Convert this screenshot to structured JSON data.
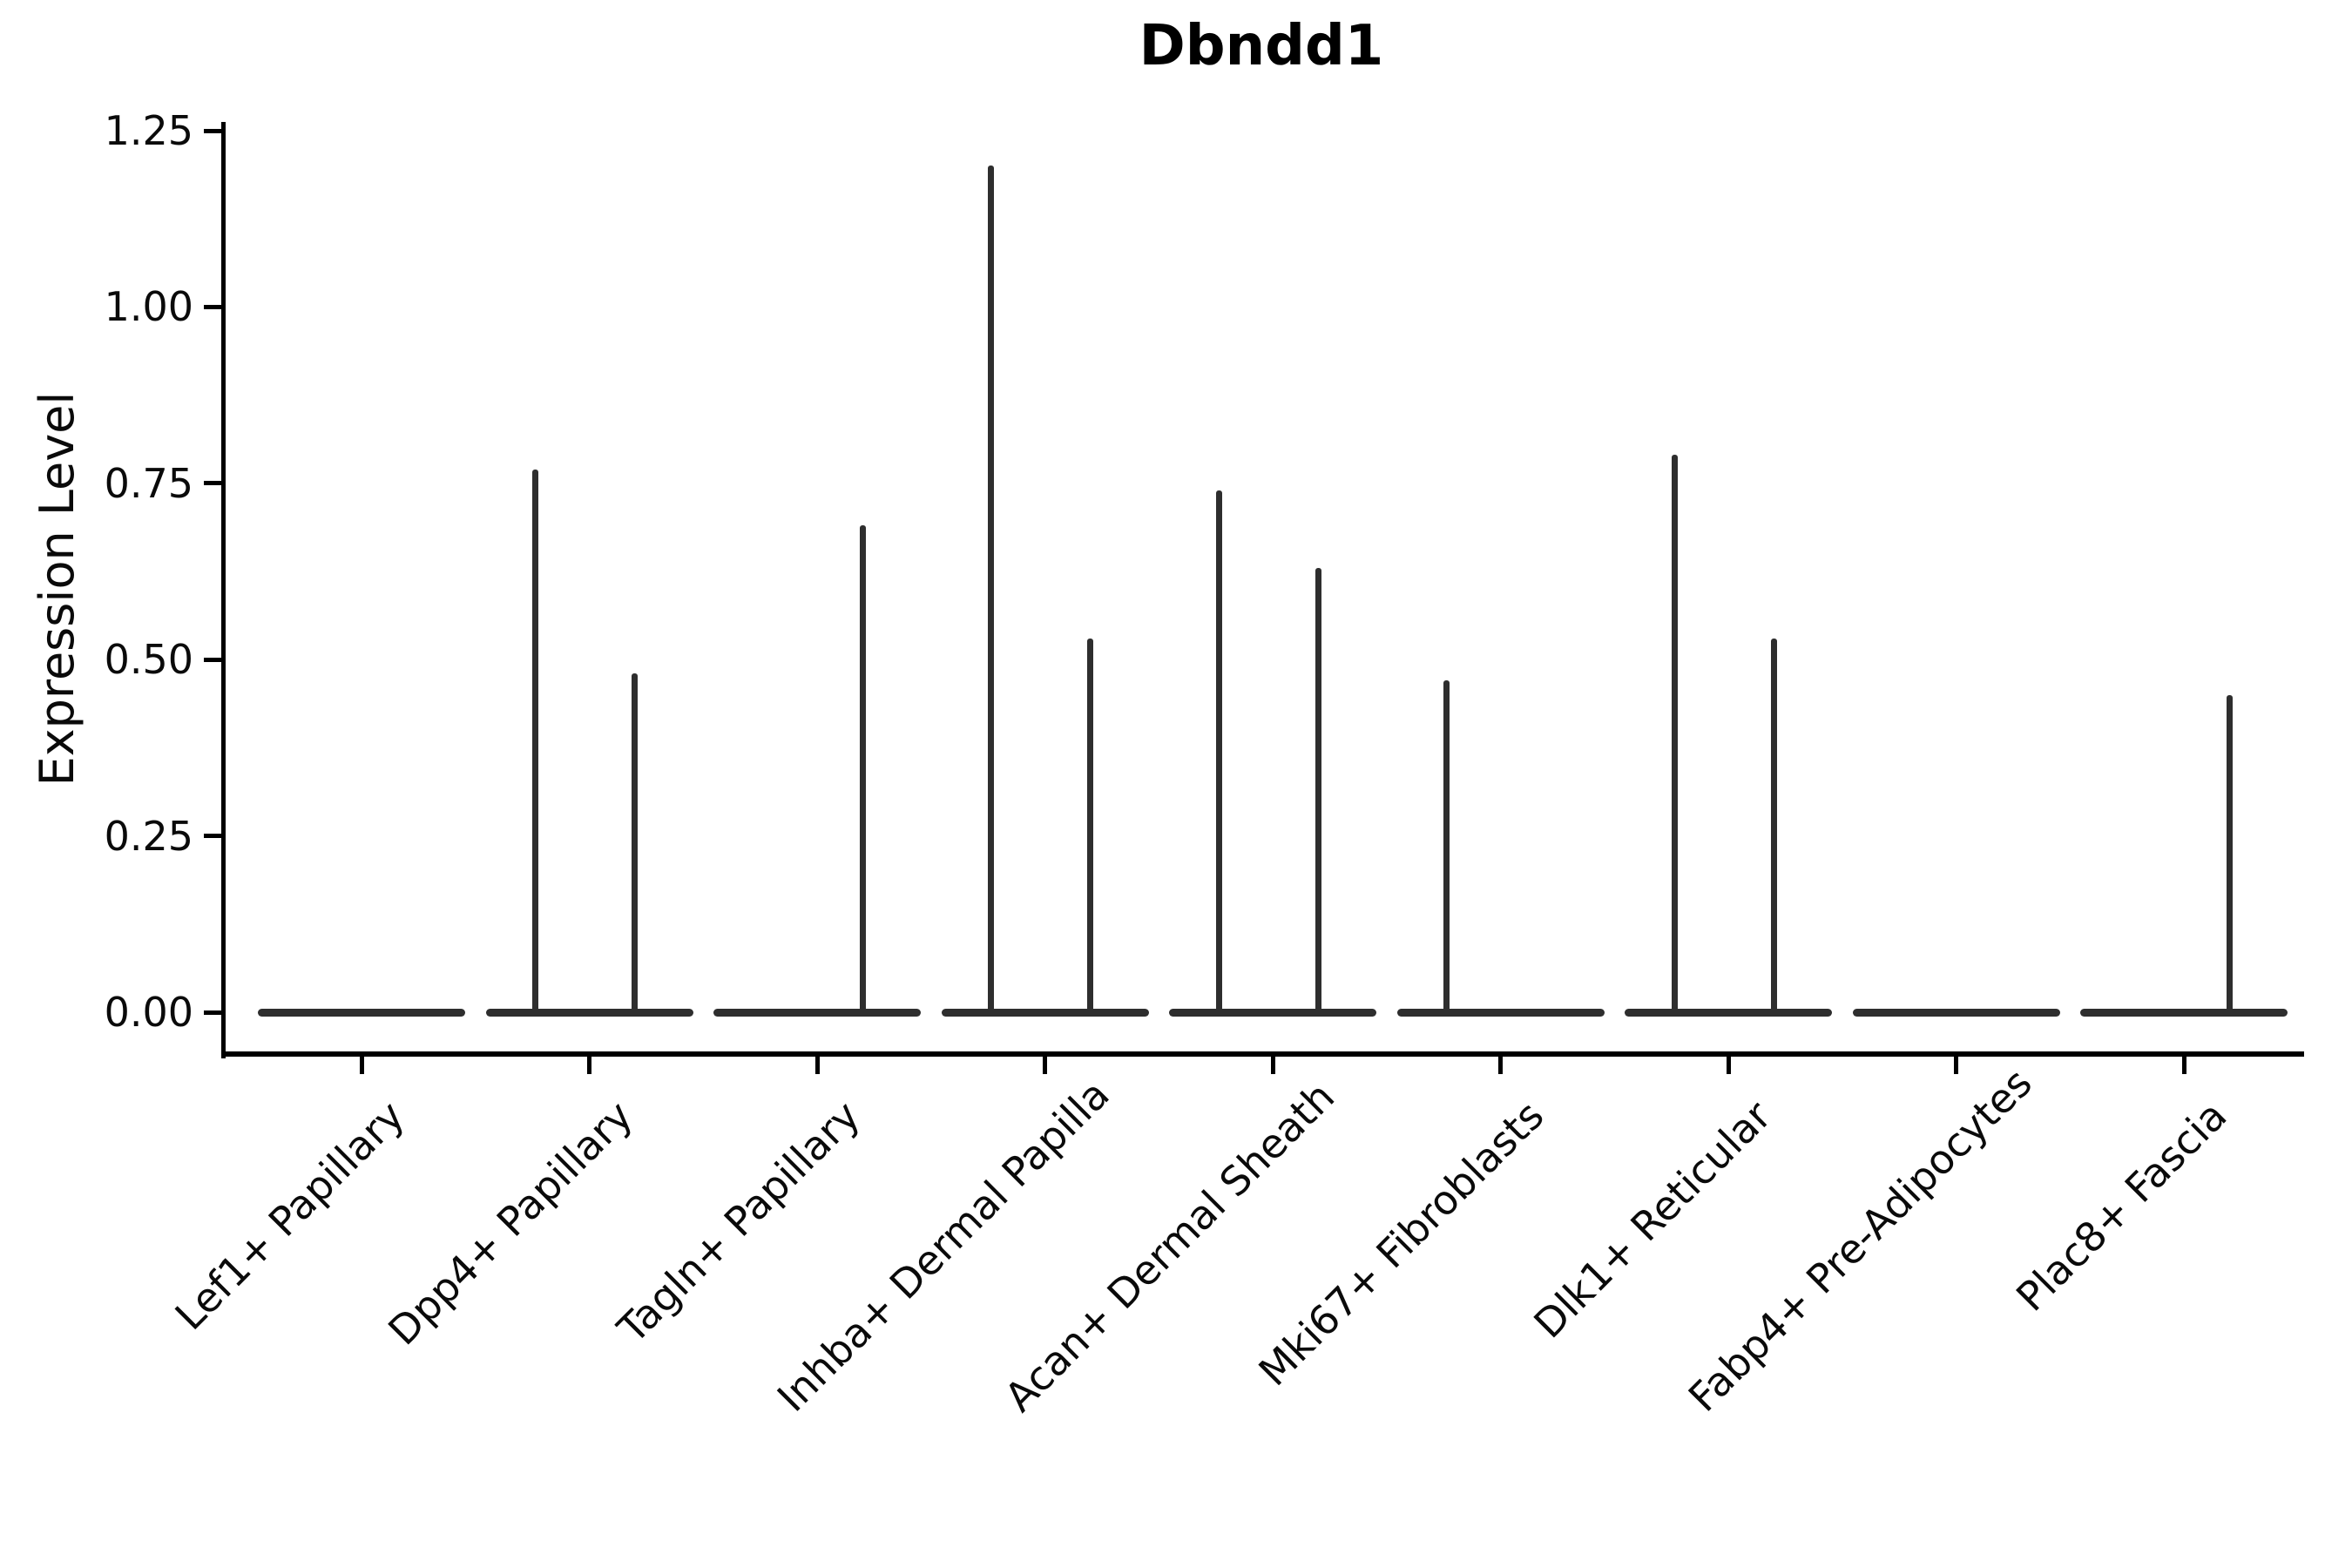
{
  "chart_data": {
    "type": "violin",
    "title": "Dbndd1",
    "ylabel": "Expression Level",
    "xlabel": "",
    "ylim": [
      0,
      1.25
    ],
    "yticks": [
      "0.00",
      "0.25",
      "0.50",
      "0.75",
      "1.00",
      "1.25"
    ],
    "grid": false,
    "legend": "none",
    "violin_color": "#2e2e2e",
    "axis_color": "#000000",
    "background_color": "#ffffff",
    "categories": [
      "Lef1+ Papillary",
      "Dpp4+ Papillary",
      "Tagln+ Papillary",
      "Inhba+ Dermal Papilla",
      "Acan+ Dermal Sheath",
      "Mki67+ Fibroblasts",
      "Dlk1+ Reticular",
      "Fabp4+ Pre-Adipocytes",
      "Plac8+ Fascia"
    ],
    "series": [
      {
        "name": "left-violin-group",
        "position": "left",
        "baseline_value": 0.0,
        "max_values": [
          0.0,
          0.77,
          0.0,
          1.2,
          0.74,
          0.47,
          0.79,
          0.0,
          0.0
        ]
      },
      {
        "name": "right-violin-group",
        "position": "right",
        "baseline_value": 0.0,
        "max_values": [
          0.0,
          0.48,
          0.69,
          0.53,
          0.63,
          0.0,
          0.53,
          0.0,
          0.45
        ]
      }
    ]
  }
}
